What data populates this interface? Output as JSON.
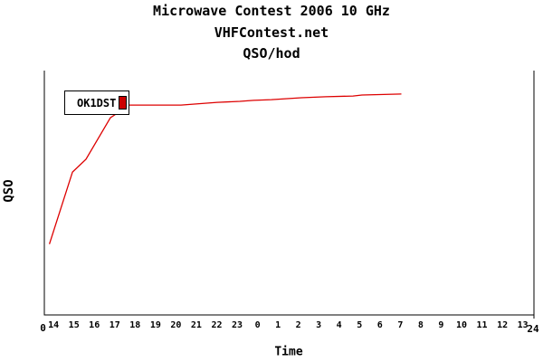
{
  "chart_data": {
    "type": "line",
    "title": "Microwave Contest 2006 10 GHz",
    "subtitle": "VHFContest.net",
    "metric_label": "QSO/hod",
    "xlabel": "Time",
    "ylabel": "QSO",
    "grid": false,
    "colors": {
      "line": "#dd0000",
      "axis": "#000000",
      "background": "#ffffff",
      "text": "#000000"
    },
    "x_axis": {
      "unit": "hour of day, contest starts at 14h",
      "tick_labels": [
        "14",
        "15",
        "16",
        "17",
        "18",
        "19",
        "20",
        "21",
        "22",
        "23",
        "0",
        "1",
        "2",
        "3",
        "4",
        "5",
        "6",
        "7",
        "8",
        "9",
        "10",
        "11",
        "12",
        "13"
      ],
      "origin_label": "0",
      "end_label": "24",
      "xlim_hours_from_start": [
        0,
        24
      ]
    },
    "y_axis": {
      "tick_labels_visible": false,
      "origin_label_shared_with_x": "0",
      "ylim_relative_pct": [
        0,
        100
      ]
    },
    "legend": {
      "position": "top-left-inside-plot",
      "border": true,
      "entries": [
        {
          "label": "OK1DST",
          "marker_color": "#cc0000"
        }
      ]
    },
    "series": [
      {
        "name": "OK1DST",
        "color": "#dd0000",
        "points_hours_vs_relpct": [
          [
            0.25,
            29.0
          ],
          [
            1.38,
            58.5
          ],
          [
            2.04,
            63.7
          ],
          [
            3.24,
            80.7
          ],
          [
            4.17,
            85.9
          ],
          [
            6.7,
            85.9
          ],
          [
            7.36,
            86.3
          ],
          [
            8.47,
            87.0
          ],
          [
            9.58,
            87.4
          ],
          [
            10.25,
            87.8
          ],
          [
            11.13,
            88.1
          ],
          [
            12.6,
            88.9
          ],
          [
            13.8,
            89.3
          ],
          [
            15.13,
            89.6
          ],
          [
            15.57,
            90.0
          ],
          [
            17.5,
            90.4
          ]
        ]
      }
    ]
  }
}
